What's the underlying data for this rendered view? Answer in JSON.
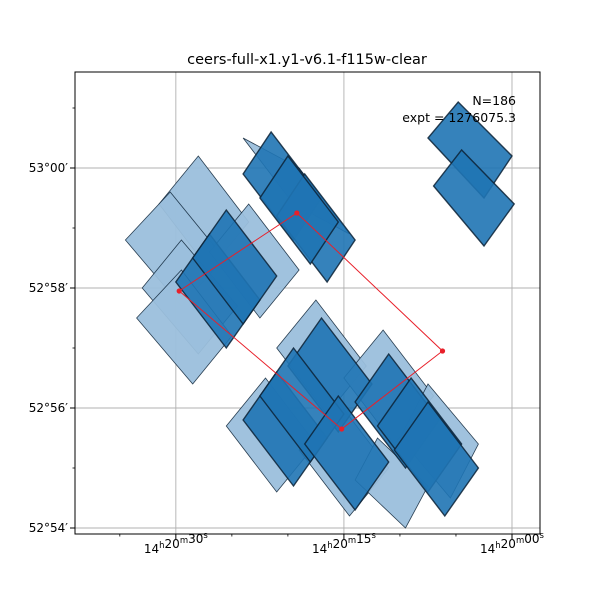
{
  "chart_data": {
    "type": "footprint-map",
    "title": "ceers-full-x1.y1-v6.1-f115w-clear",
    "annotation": [
      "N=186",
      "expt = 1276075.3"
    ],
    "xlabel": "",
    "ylabel": "",
    "xlim_seconds_ra": [
      39.0,
      -2.5
    ],
    "ylim_arcmin_dec": [
      -6.1,
      1.6
    ],
    "x_axis": {
      "unit": "RA (14h20m + seconds)",
      "ticks": [
        {
          "value": 30,
          "h": "14",
          "m": "20",
          "s": "30"
        },
        {
          "value": 15,
          "h": "14",
          "m": "20",
          "s": "15"
        },
        {
          "value": 0,
          "h": "14",
          "m": "20",
          "s": "00"
        }
      ],
      "minor_ticks": [
        35,
        25,
        20,
        10,
        5
      ]
    },
    "y_axis": {
      "unit": "Dec (arcmin offset from 53°00′)",
      "ticks": [
        {
          "value": 0,
          "deg": "53",
          "min": "00"
        },
        {
          "value": -2,
          "deg": "52",
          "min": "58"
        },
        {
          "value": -4,
          "deg": "52",
          "min": "56"
        },
        {
          "value": -6,
          "deg": "52",
          "min": "54"
        }
      ],
      "minor_ticks": [
        1,
        -1,
        -3,
        -5
      ]
    },
    "grid": true,
    "colors": {
      "light_fill": "#9bbfdc",
      "dark_fill": "#1f74b4",
      "edge": "#0c2236",
      "line": "#e8202a"
    },
    "footprints": [
      {
        "group": "light",
        "corners": [
          [
            24.0,
            0.5
          ],
          [
            19.5,
            -0.6
          ],
          [
            14.5,
            -1.1
          ],
          [
            19.0,
            0.0
          ]
        ]
      },
      {
        "group": "light",
        "corners": [
          [
            31.5,
            -0.6
          ],
          [
            27.0,
            -1.7
          ],
          [
            23.5,
            -0.9
          ],
          [
            28.0,
            0.2
          ]
        ]
      },
      {
        "group": "light",
        "corners": [
          [
            34.5,
            -1.2
          ],
          [
            29.5,
            -2.3
          ],
          [
            25.7,
            -1.5
          ],
          [
            30.5,
            -0.4
          ]
        ]
      },
      {
        "group": "light",
        "corners": [
          [
            27.0,
            -1.4
          ],
          [
            22.5,
            -2.5
          ],
          [
            19.0,
            -1.7
          ],
          [
            23.5,
            -0.6
          ]
        ]
      },
      {
        "group": "light",
        "corners": [
          [
            33.0,
            -2.0
          ],
          [
            28.0,
            -3.1
          ],
          [
            24.5,
            -2.3
          ],
          [
            29.5,
            -1.2
          ]
        ]
      },
      {
        "group": "light",
        "corners": [
          [
            33.5,
            -2.5
          ],
          [
            28.5,
            -3.6
          ],
          [
            25.0,
            -2.8
          ],
          [
            29.5,
            -1.7
          ]
        ]
      },
      {
        "group": "light",
        "corners": [
          [
            21.0,
            -3.0
          ],
          [
            16.5,
            -4.1
          ],
          [
            13.0,
            -3.3
          ],
          [
            17.5,
            -2.2
          ]
        ]
      },
      {
        "group": "light",
        "corners": [
          [
            25.5,
            -4.3
          ],
          [
            21.0,
            -5.4
          ],
          [
            17.5,
            -4.6
          ],
          [
            22.0,
            -3.5
          ]
        ]
      },
      {
        "group": "light",
        "corners": [
          [
            15.0,
            -3.5
          ],
          [
            10.5,
            -4.6
          ],
          [
            7.0,
            -3.8
          ],
          [
            11.5,
            -2.7
          ]
        ]
      },
      {
        "group": "light",
        "corners": [
          [
            19.0,
            -4.7
          ],
          [
            14.5,
            -5.8
          ],
          [
            11.0,
            -5.0
          ],
          [
            15.5,
            -3.9
          ]
        ]
      },
      {
        "group": "light",
        "corners": [
          [
            10.0,
            -4.5
          ],
          [
            5.5,
            -5.5
          ],
          [
            3.0,
            -4.6
          ],
          [
            7.5,
            -3.6
          ]
        ]
      },
      {
        "group": "light",
        "corners": [
          [
            14.0,
            -5.2
          ],
          [
            9.5,
            -6.0
          ],
          [
            7.5,
            -5.3
          ],
          [
            12.0,
            -4.5
          ]
        ]
      },
      {
        "group": "dark",
        "corners": [
          [
            24.0,
            -0.1
          ],
          [
            19.5,
            -1.2
          ],
          [
            17.0,
            -0.5
          ],
          [
            21.5,
            0.6
          ]
        ]
      },
      {
        "group": "dark",
        "corners": [
          [
            21.0,
            -0.8
          ],
          [
            16.5,
            -1.9
          ],
          [
            14.0,
            -1.2
          ],
          [
            18.5,
            -0.1
          ]
        ]
      },
      {
        "group": "dark",
        "corners": [
          [
            22.5,
            -0.5
          ],
          [
            18.0,
            -1.6
          ],
          [
            15.5,
            -0.9
          ],
          [
            20.0,
            0.2
          ]
        ]
      },
      {
        "group": "dark",
        "corners": [
          [
            30.0,
            -1.9
          ],
          [
            25.5,
            -3.0
          ],
          [
            22.5,
            -2.2
          ],
          [
            27.0,
            -1.1
          ]
        ]
      },
      {
        "group": "dark",
        "corners": [
          [
            28.5,
            -1.5
          ],
          [
            24.0,
            -2.6
          ],
          [
            21.0,
            -1.8
          ],
          [
            25.5,
            -0.7
          ]
        ]
      },
      {
        "group": "dark",
        "corners": [
          [
            20.0,
            -3.3
          ],
          [
            15.5,
            -4.4
          ],
          [
            12.5,
            -3.6
          ],
          [
            17.0,
            -2.5
          ]
        ]
      },
      {
        "group": "dark",
        "corners": [
          [
            24.0,
            -4.2
          ],
          [
            19.5,
            -5.3
          ],
          [
            16.5,
            -4.5
          ],
          [
            21.0,
            -3.4
          ]
        ]
      },
      {
        "group": "dark",
        "corners": [
          [
            22.5,
            -3.8
          ],
          [
            18.0,
            -4.9
          ],
          [
            15.0,
            -4.1
          ],
          [
            19.5,
            -3.0
          ]
        ]
      },
      {
        "group": "dark",
        "corners": [
          [
            18.5,
            -4.6
          ],
          [
            14.0,
            -5.7
          ],
          [
            11.0,
            -4.9
          ],
          [
            15.5,
            -3.8
          ]
        ]
      },
      {
        "group": "dark",
        "corners": [
          [
            14.0,
            -3.9
          ],
          [
            9.5,
            -5.0
          ],
          [
            6.5,
            -4.2
          ],
          [
            11.0,
            -3.1
          ]
        ]
      },
      {
        "group": "dark",
        "corners": [
          [
            12.0,
            -4.3
          ],
          [
            7.5,
            -5.4
          ],
          [
            4.5,
            -4.6
          ],
          [
            9.0,
            -3.5
          ]
        ]
      },
      {
        "group": "dark",
        "corners": [
          [
            10.5,
            -4.7
          ],
          [
            6.0,
            -5.8
          ],
          [
            3.0,
            -5.0
          ],
          [
            7.5,
            -3.9
          ]
        ]
      },
      {
        "group": "dark",
        "corners": [
          [
            7.5,
            0.5
          ],
          [
            2.5,
            -0.5
          ],
          [
            0.0,
            0.2
          ],
          [
            4.8,
            1.1
          ]
        ]
      },
      {
        "group": "dark",
        "corners": [
          [
            7.0,
            -0.3
          ],
          [
            2.5,
            -1.3
          ],
          [
            -0.2,
            -0.6
          ],
          [
            4.5,
            0.3
          ]
        ]
      }
    ],
    "outline_points": [
      [
        29.7,
        -2.05
      ],
      [
        19.2,
        -0.75
      ],
      [
        6.2,
        -3.05
      ],
      [
        15.2,
        -4.35
      ]
    ]
  }
}
